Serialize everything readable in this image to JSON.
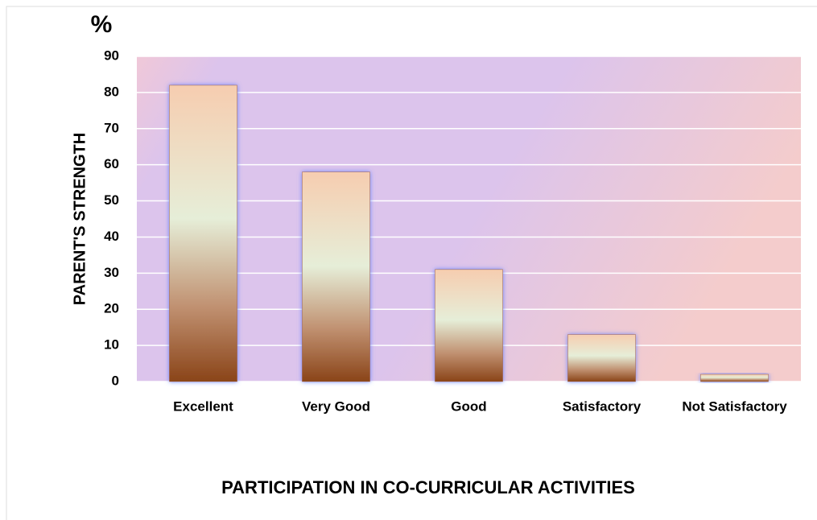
{
  "chart_data": {
    "type": "bar",
    "y_unit": "%",
    "y_label": "PARENT'S STRENGTH",
    "x_label": "PARTICIPATION IN CO-CURRICULAR ACTIVITIES",
    "categories": [
      "Excellent",
      "Very Good",
      "Good",
      "Satisfactory",
      "Not Satisfactory"
    ],
    "values": [
      82,
      58,
      31,
      13,
      2
    ],
    "color": "#a0622f",
    "ylim": [
      0,
      90
    ],
    "yticks": [
      0,
      10,
      20,
      30,
      40,
      50,
      60,
      70,
      80,
      90
    ],
    "grid": true
  }
}
